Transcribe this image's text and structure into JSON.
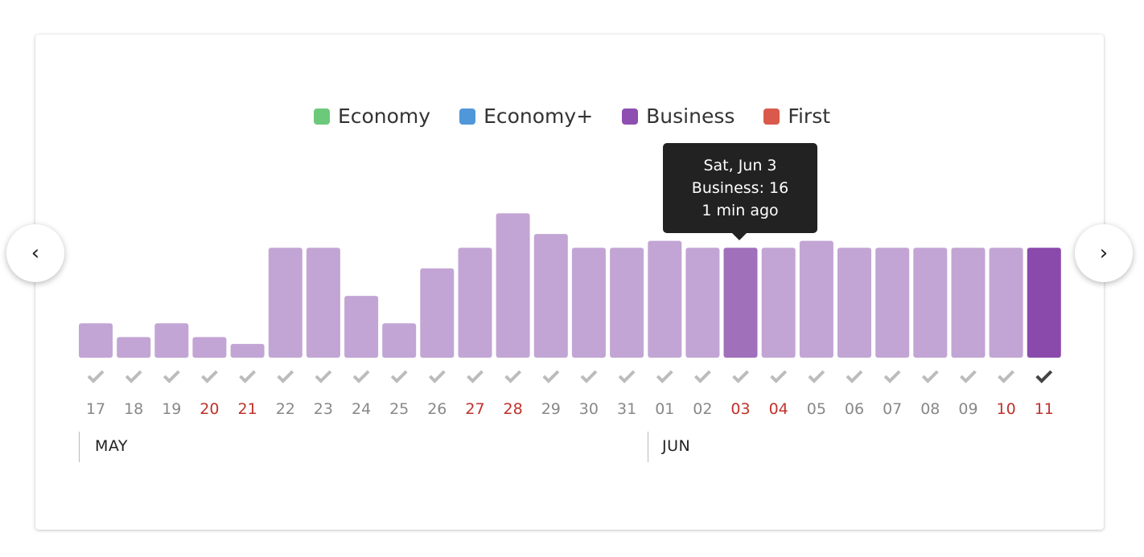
{
  "legend": [
    {
      "label": "Economy",
      "color": "#6cc97a"
    },
    {
      "label": "Economy+",
      "color": "#4f97d9"
    },
    {
      "label": "Business",
      "color": "#8e4fb0"
    },
    {
      "label": "First",
      "color": "#d9594a"
    }
  ],
  "navigation": {
    "prev_icon": "chevron-left-icon",
    "next_icon": "chevron-right-icon",
    "prev_glyph": "‹",
    "next_glyph": "›"
  },
  "tooltip": {
    "line1": "Sat, Jun 3",
    "line2": "Business: 16",
    "line3": "1 min ago"
  },
  "months": [
    {
      "label": "MAY"
    },
    {
      "label": "JUN"
    }
  ],
  "colors": {
    "bar": "#c2a5d4",
    "bar_hover": "#a070bb",
    "bar_selected": "#8a4aab",
    "check": "#bcbcbc",
    "check_selected": "#444444",
    "day": "#888888",
    "day_weekend": "#c0312b"
  },
  "chart_data": {
    "type": "bar",
    "series_name": "Business",
    "categories": [
      "17",
      "18",
      "19",
      "20",
      "21",
      "22",
      "23",
      "24",
      "25",
      "26",
      "27",
      "28",
      "29",
      "30",
      "31",
      "01",
      "02",
      "03",
      "04",
      "05",
      "06",
      "07",
      "08",
      "09",
      "10",
      "11"
    ],
    "values": [
      5,
      3,
      5,
      3,
      2,
      16,
      16,
      9,
      5,
      13,
      16,
      21,
      18,
      16,
      16,
      17,
      16,
      16,
      16,
      17,
      16,
      16,
      16,
      16,
      16,
      16
    ],
    "weekend": [
      false,
      false,
      false,
      true,
      true,
      false,
      false,
      false,
      false,
      false,
      true,
      true,
      false,
      false,
      false,
      false,
      false,
      true,
      true,
      false,
      false,
      false,
      false,
      false,
      true,
      true
    ],
    "hover_index": 17,
    "selected_index": 25,
    "ylim": [
      0,
      21
    ]
  }
}
